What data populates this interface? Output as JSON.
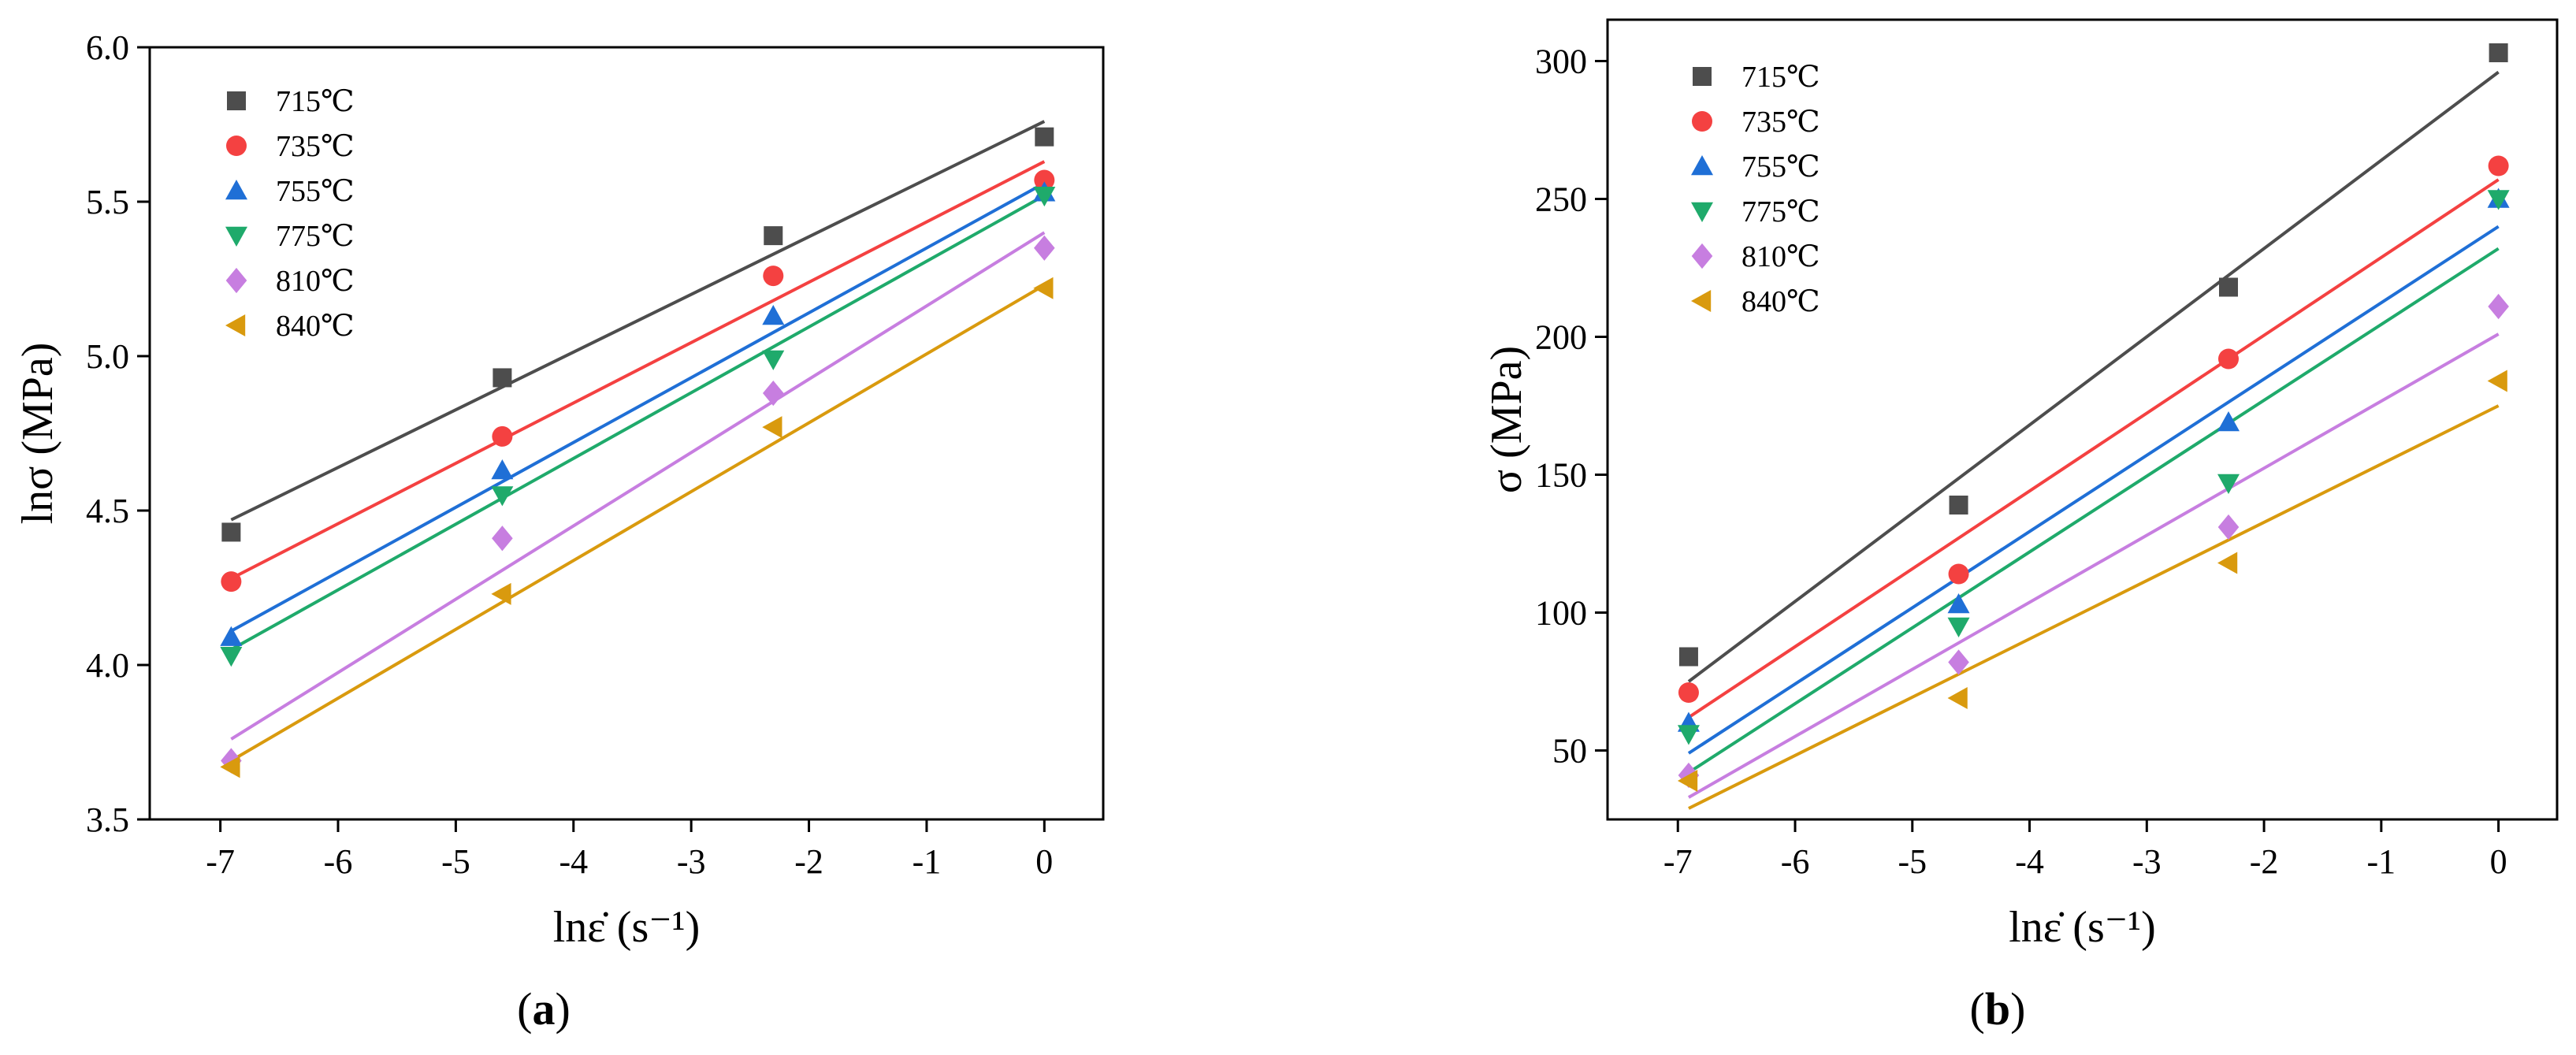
{
  "chart_data": [
    {
      "type": "scatter",
      "panel_label": "a",
      "xlabel": "lnε̇ (s⁻¹)",
      "ylabel": "lnσ (MPa)",
      "xlim": [
        -7.6,
        0.5
      ],
      "ylim": [
        3.5,
        6.0
      ],
      "xticks": [
        -7,
        -6,
        -5,
        -4,
        -3,
        -2,
        -1,
        0
      ],
      "yticks": [
        3.5,
        4.0,
        4.5,
        5.0,
        5.5,
        6.0
      ],
      "ytick_decimals": 1,
      "x": [
        -6.908,
        -4.605,
        -2.303,
        0
      ],
      "legend_position": "top-left",
      "series": [
        {
          "name": "715℃",
          "color": "#4d4d4d",
          "marker": "square",
          "values": [
            4.43,
            4.93,
            5.39,
            5.71
          ],
          "fit": [
            4.47,
            5.76
          ]
        },
        {
          "name": "735℃",
          "color": "#f44141",
          "marker": "circle",
          "values": [
            4.27,
            4.74,
            5.26,
            5.57
          ],
          "fit": [
            4.28,
            5.63
          ]
        },
        {
          "name": "755℃",
          "color": "#1f6fd6",
          "marker": "triangle-up",
          "values": [
            4.09,
            4.63,
            5.13,
            5.53
          ],
          "fit": [
            4.11,
            5.56
          ]
        },
        {
          "name": "775℃",
          "color": "#1faa6b",
          "marker": "triangle-down",
          "values": [
            4.03,
            4.55,
            4.99,
            5.52
          ],
          "fit": [
            4.05,
            5.52
          ]
        },
        {
          "name": "810℃",
          "color": "#c77ee0",
          "marker": "diamond",
          "values": [
            3.69,
            4.41,
            4.88,
            5.35
          ],
          "fit": [
            3.76,
            5.4
          ]
        },
        {
          "name": "840℃",
          "color": "#d99a0e",
          "marker": "triangle-left",
          "values": [
            3.67,
            4.23,
            4.77,
            5.22
          ],
          "fit": [
            3.69,
            5.23
          ]
        }
      ]
    },
    {
      "type": "scatter",
      "panel_label": "b",
      "xlabel": "lnε̇ (s⁻¹)",
      "ylabel": "σ (MPa)",
      "xlim": [
        -7.6,
        0.5
      ],
      "ylim": [
        25,
        315
      ],
      "xticks": [
        -7,
        -6,
        -5,
        -4,
        -3,
        -2,
        -1,
        0
      ],
      "yticks": [
        50,
        100,
        150,
        200,
        250,
        300
      ],
      "ytick_decimals": 0,
      "x": [
        -6.908,
        -4.605,
        -2.303,
        0
      ],
      "legend_position": "top-left",
      "series": [
        {
          "name": "715℃",
          "color": "#4d4d4d",
          "marker": "square",
          "values": [
            84,
            139,
            218,
            303
          ],
          "fit": [
            75,
            296
          ]
        },
        {
          "name": "735℃",
          "color": "#f44141",
          "marker": "circle",
          "values": [
            71,
            114,
            192,
            262
          ],
          "fit": [
            62,
            257
          ]
        },
        {
          "name": "755℃",
          "color": "#1f6fd6",
          "marker": "triangle-up",
          "values": [
            60,
            103,
            169,
            250
          ],
          "fit": [
            49,
            240
          ]
        },
        {
          "name": "775℃",
          "color": "#1faa6b",
          "marker": "triangle-down",
          "values": [
            56,
            95,
            147,
            250
          ],
          "fit": [
            42,
            232
          ]
        },
        {
          "name": "810℃",
          "color": "#c77ee0",
          "marker": "diamond",
          "values": [
            41,
            82,
            131,
            211
          ],
          "fit": [
            33,
            201
          ]
        },
        {
          "name": "840℃",
          "color": "#d99a0e",
          "marker": "triangle-left",
          "values": [
            39,
            69,
            118,
            184
          ],
          "fit": [
            29,
            175
          ]
        }
      ]
    }
  ]
}
